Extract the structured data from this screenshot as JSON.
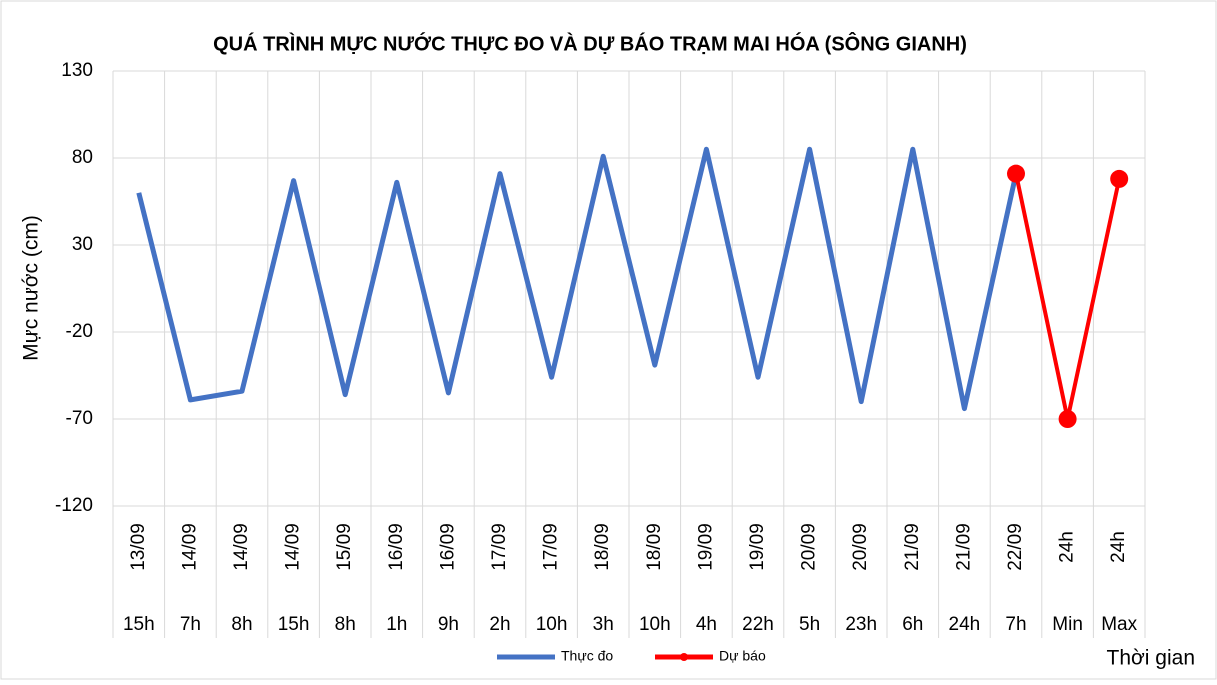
{
  "chart_data": {
    "type": "line",
    "title": "QUÁ TRÌNH MỰC NƯỚC THỰC ĐO VÀ DỰ BÁO TRẠM MAI HÓA (SÔNG GIANH)",
    "ylabel": "Mực nước (cm)",
    "xlabel": "Thời gian",
    "categories": [
      [
        "13/09",
        "15h"
      ],
      [
        "14/09",
        "7h"
      ],
      [
        "14/09",
        "8h"
      ],
      [
        "14/09",
        "15h"
      ],
      [
        "15/09",
        "8h"
      ],
      [
        "16/09",
        "1h"
      ],
      [
        "16/09",
        "9h"
      ],
      [
        "17/09",
        "2h"
      ],
      [
        "17/09",
        "10h"
      ],
      [
        "18/09",
        "3h"
      ],
      [
        "18/09",
        "10h"
      ],
      [
        "19/09",
        "4h"
      ],
      [
        "19/09",
        "22h"
      ],
      [
        "20/09",
        "5h"
      ],
      [
        "20/09",
        "23h"
      ],
      [
        "21/09",
        "6h"
      ],
      [
        "21/09",
        "24h"
      ],
      [
        "22/09",
        "7h"
      ],
      [
        "24h",
        "Min"
      ],
      [
        "24h",
        "Max"
      ]
    ],
    "series": [
      {
        "name": "Thực đo",
        "color": "#4472c4",
        "values": [
          60,
          -59,
          -54,
          67,
          -56,
          66,
          -55,
          71,
          -46,
          81,
          -39,
          85,
          -46,
          85,
          -60,
          85,
          -64,
          71,
          null,
          null
        ]
      },
      {
        "name": "Dự báo",
        "color": "#ff0000",
        "marker": true,
        "values": [
          null,
          null,
          null,
          null,
          null,
          null,
          null,
          null,
          null,
          null,
          null,
          null,
          null,
          null,
          null,
          null,
          null,
          71,
          -70,
          68
        ]
      }
    ],
    "ylim": [
      -120,
      130
    ],
    "yticks": [
      -120,
      -70,
      -20,
      30,
      80,
      130
    ],
    "grid": true,
    "legend": "bottom"
  }
}
